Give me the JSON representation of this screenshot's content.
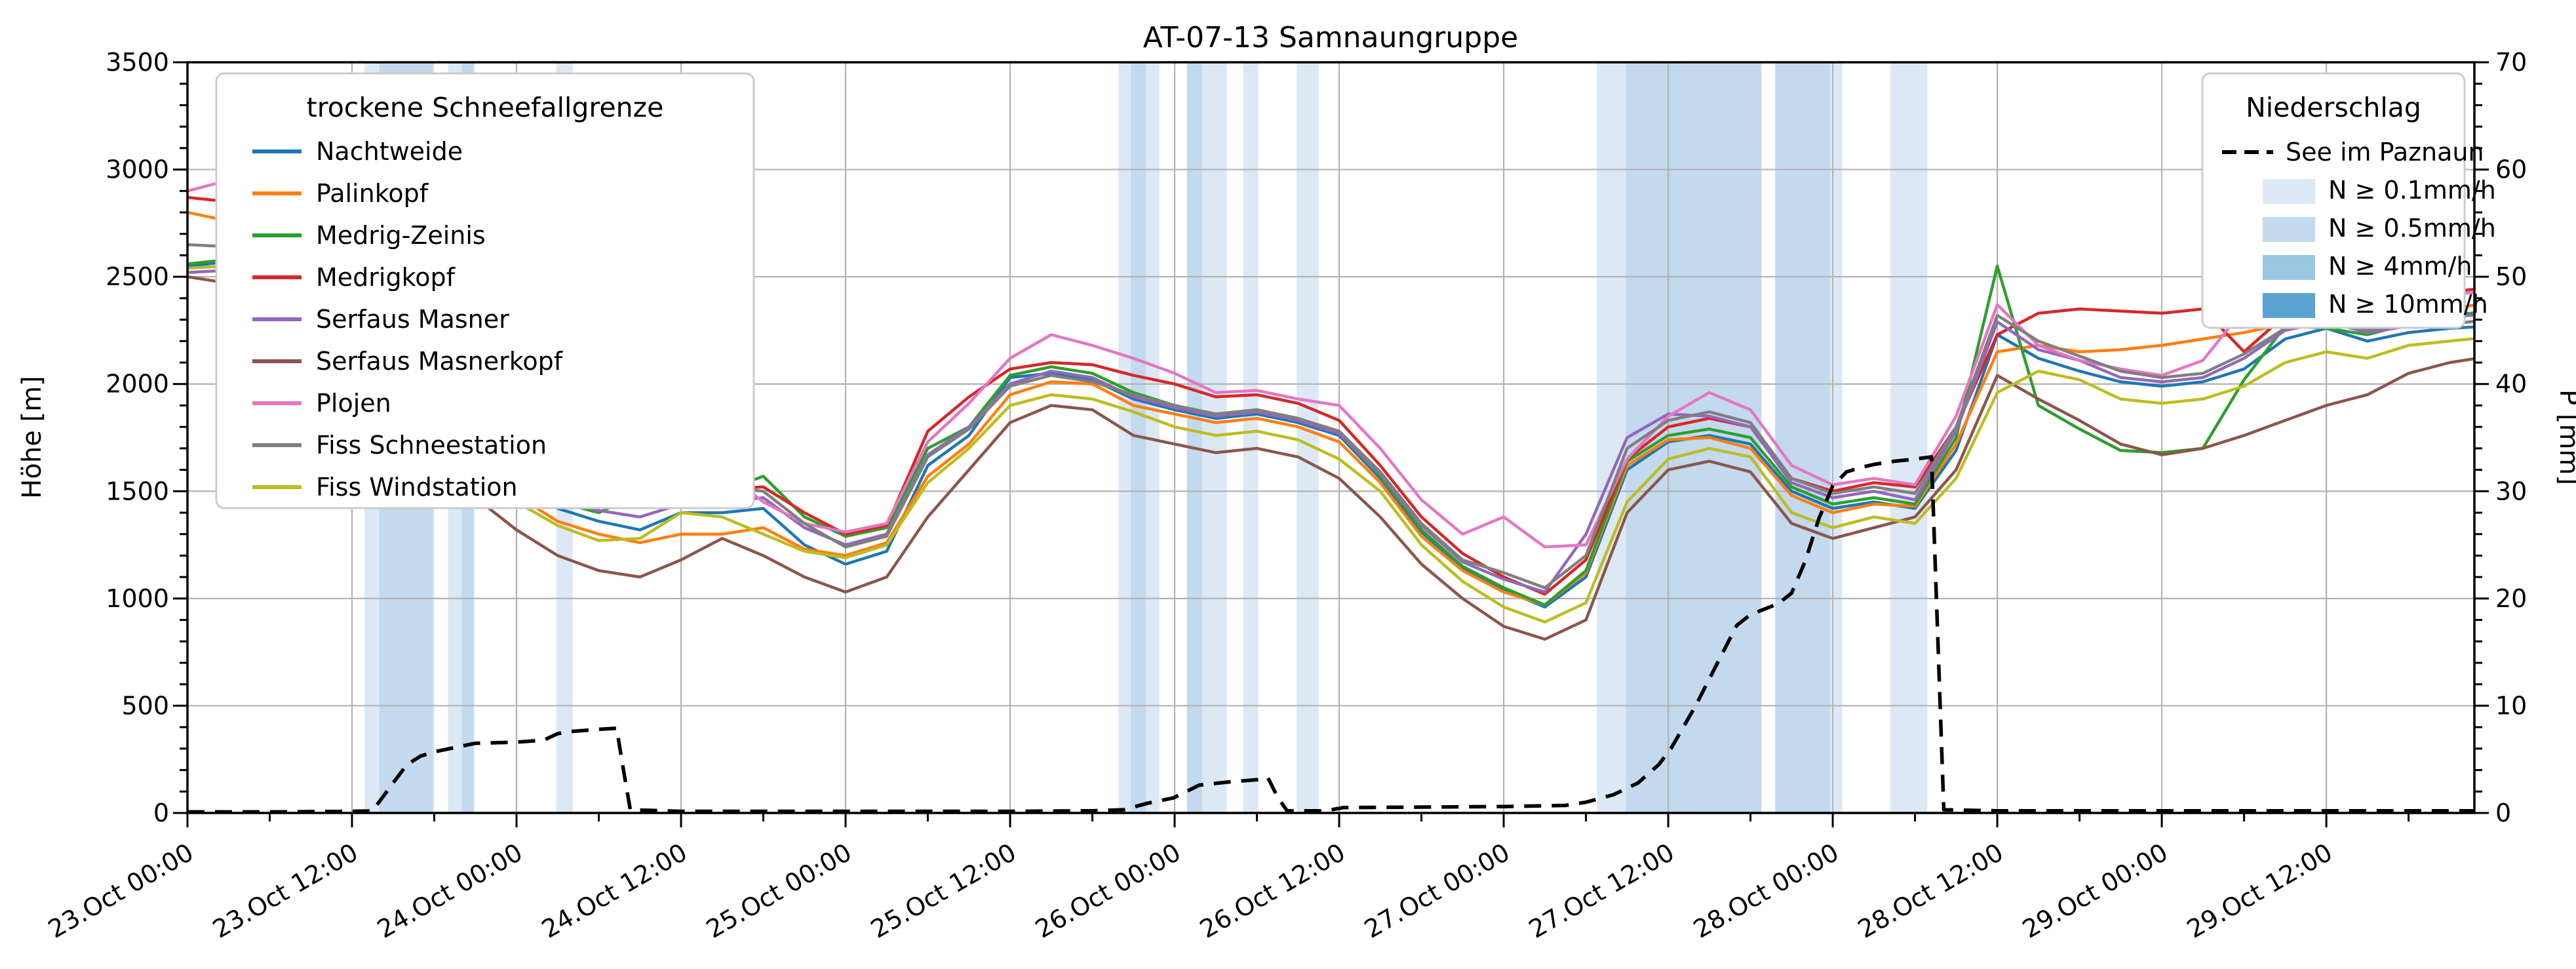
{
  "title": "AT-07-13 Samnaungruppe",
  "y_left": {
    "label": "Höhe [m]",
    "min": 0,
    "max": 3500,
    "major_ticks": [
      0,
      500,
      1000,
      1500,
      2000,
      2500,
      3000,
      3500
    ],
    "minor_step": 100
  },
  "y_right": {
    "label": "P [mm]",
    "min": 0,
    "max": 70,
    "major_ticks": [
      0,
      10,
      20,
      30,
      40,
      50,
      60,
      70
    ],
    "minor_step": 2
  },
  "x_axis": {
    "tick_labels": [
      "23.Oct 00:00",
      "23.Oct 12:00",
      "24.Oct 00:00",
      "24.Oct 12:00",
      "25.Oct 00:00",
      "25.Oct 12:00",
      "26.Oct 00:00",
      "26.Oct 12:00",
      "27.Oct 00:00",
      "27.Oct 12:00",
      "28.Oct 00:00",
      "28.Oct 12:00",
      "29.Oct 00:00",
      "29.Oct 12:00"
    ],
    "label_step_hours": 12,
    "minor_step_hours": 6,
    "end_hour": 166.8
  },
  "legend_snowline": {
    "title": "trockene Schneefallgrenze",
    "items": [
      {
        "label": "Nachtweide",
        "color": "#1f77b4"
      },
      {
        "label": "Palinkopf",
        "color": "#ff7f0e"
      },
      {
        "label": "Medrig-Zeinis",
        "color": "#2ca02c"
      },
      {
        "label": "Medrigkopf",
        "color": "#d62728"
      },
      {
        "label": "Serfaus Masner",
        "color": "#9467bd"
      },
      {
        "label": "Serfaus Masnerkopf",
        "color": "#8c564b"
      },
      {
        "label": "Plojen",
        "color": "#e377c2"
      },
      {
        "label": "Fiss Schneestation",
        "color": "#7f7f7f"
      },
      {
        "label": "Fiss Windstation",
        "color": "#bcbd22"
      }
    ]
  },
  "legend_precip": {
    "title": "Niederschlag",
    "line_item": {
      "label": "See im Paznaun",
      "color": "#000000"
    },
    "band_items": [
      {
        "label": "N ≥ 0.1mm/h",
        "color": "#dce9f5"
      },
      {
        "label": "N ≥ 0.5mm/h",
        "color": "#c3d9ee"
      },
      {
        "label": "N ≥ 4mm/h",
        "color": "#9cc7e2"
      },
      {
        "label": "N ≥ 10mm/h",
        "color": "#5ba3d0"
      }
    ]
  },
  "chart_data": {
    "type": "line",
    "x_unit": "hours since 23.Oct 00:00",
    "xlim_hours": [
      0,
      166.8
    ],
    "ylim_left": [
      0,
      3500
    ],
    "ylim_right": [
      0,
      70
    ],
    "grid": true,
    "t_step_hours": 3,
    "series": [
      {
        "name": "Nachtweide",
        "color": "#1f77b4",
        "values": [
          2550,
          2570,
          2630,
          2580,
          2550,
          2290,
          1880,
          1680,
          1540,
          1420,
          1360,
          1320,
          1400,
          1400,
          1420,
          1250,
          1160,
          1220,
          1620,
          1760,
          2030,
          2050,
          2020,
          1930,
          1880,
          1840,
          1860,
          1820,
          1760,
          1560,
          1310,
          1140,
          1040,
          960,
          1100,
          1600,
          1730,
          1760,
          1720,
          1500,
          1420,
          1450,
          1420,
          1690,
          2230,
          2120,
          2060,
          2010,
          1990,
          2010,
          2070,
          2210,
          2260,
          2200,
          2240,
          2260,
          2270
        ]
      },
      {
        "name": "Palinkopf",
        "color": "#ff7f0e",
        "values": [
          2800,
          2760,
          2700,
          2680,
          2710,
          2330,
          1840,
          1620,
          1480,
          1360,
          1300,
          1260,
          1300,
          1300,
          1330,
          1230,
          1200,
          1260,
          1570,
          1720,
          1950,
          2010,
          2000,
          1900,
          1860,
          1820,
          1840,
          1800,
          1730,
          1540,
          1290,
          1130,
          1030,
          970,
          1120,
          1620,
          1740,
          1750,
          1700,
          1480,
          1400,
          1440,
          1430,
          1720,
          2150,
          2180,
          2150,
          2160,
          2180,
          2210,
          2240,
          2280,
          2300,
          2270,
          2310,
          2350,
          2380
        ]
      },
      {
        "name": "Medrig-Zeinis",
        "color": "#2ca02c",
        "values": [
          2560,
          2580,
          2600,
          2570,
          2560,
          2310,
          1900,
          1700,
          1560,
          1450,
          1400,
          1490,
          1520,
          1500,
          1570,
          1380,
          1290,
          1330,
          1700,
          1800,
          2040,
          2080,
          2050,
          1960,
          1900,
          1860,
          1880,
          1840,
          1770,
          1570,
          1320,
          1150,
          1050,
          970,
          1130,
          1640,
          1760,
          1790,
          1750,
          1520,
          1440,
          1470,
          1440,
          1750,
          2550,
          1900,
          1790,
          1690,
          1680,
          1700,
          2020,
          2270,
          2260,
          2230,
          2280,
          2320,
          2340
        ]
      },
      {
        "name": "Medrigkopf",
        "color": "#d62728",
        "values": [
          2870,
          2850,
          2800,
          2780,
          2750,
          2420,
          1980,
          1760,
          1620,
          1500,
          1450,
          1470,
          1500,
          1510,
          1520,
          1400,
          1300,
          1340,
          1780,
          1940,
          2070,
          2100,
          2090,
          2040,
          2000,
          1940,
          1950,
          1910,
          1830,
          1620,
          1380,
          1210,
          1100,
          1020,
          1180,
          1650,
          1800,
          1840,
          1800,
          1560,
          1500,
          1540,
          1520,
          1800,
          2230,
          2330,
          2350,
          2340,
          2330,
          2350,
          2150,
          2320,
          2350,
          2300,
          2420,
          2430,
          2450
        ]
      },
      {
        "name": "Serfaus Masner",
        "color": "#9467bd",
        "values": [
          2520,
          2530,
          2560,
          2540,
          2530,
          2280,
          1870,
          1700,
          1570,
          1460,
          1410,
          1380,
          1440,
          1450,
          1470,
          1330,
          1250,
          1300,
          1670,
          1800,
          2000,
          2060,
          2030,
          1940,
          1890,
          1850,
          1870,
          1830,
          1770,
          1580,
          1340,
          1170,
          1090,
          1030,
          1300,
          1750,
          1860,
          1850,
          1800,
          1540,
          1470,
          1500,
          1460,
          1780,
          2290,
          2160,
          2110,
          2030,
          2010,
          2030,
          2120,
          2250,
          2290,
          2240,
          2270,
          2310,
          2330
        ]
      },
      {
        "name": "Serfaus Masnerkopf",
        "color": "#8c564b",
        "values": [
          2500,
          2470,
          2440,
          2420,
          2450,
          2180,
          1700,
          1470,
          1320,
          1200,
          1130,
          1100,
          1180,
          1280,
          1200,
          1100,
          1030,
          1100,
          1380,
          1600,
          1820,
          1900,
          1880,
          1760,
          1720,
          1680,
          1700,
          1660,
          1560,
          1380,
          1160,
          1000,
          870,
          810,
          900,
          1400,
          1600,
          1640,
          1590,
          1350,
          1280,
          1330,
          1380,
          1600,
          2040,
          1930,
          1830,
          1720,
          1670,
          1700,
          1760,
          1830,
          1900,
          1950,
          2050,
          2100,
          2130
        ]
      },
      {
        "name": "Plojen",
        "color": "#e377c2",
        "values": [
          2900,
          2950,
          2880,
          2930,
          2870,
          2500,
          2060,
          1820,
          1700,
          1620,
          1560,
          1780,
          1790,
          1600,
          1450,
          1350,
          1310,
          1350,
          1730,
          1910,
          2120,
          2230,
          2180,
          2120,
          2050,
          1960,
          1970,
          1930,
          1900,
          1700,
          1460,
          1300,
          1380,
          1240,
          1250,
          1650,
          1850,
          1960,
          1880,
          1620,
          1530,
          1560,
          1530,
          1850,
          2370,
          2180,
          2110,
          2070,
          2040,
          2110,
          2350,
          2480,
          2400,
          2300,
          2430,
          2420,
          2430
        ]
      },
      {
        "name": "Fiss Schneestation",
        "color": "#7f7f7f",
        "values": [
          2650,
          2640,
          2630,
          2620,
          2610,
          2350,
          1920,
          1720,
          1590,
          1480,
          1430,
          1500,
          1520,
          1520,
          1500,
          1350,
          1240,
          1290,
          1660,
          1790,
          1990,
          2040,
          2010,
          1950,
          1900,
          1860,
          1880,
          1840,
          1780,
          1590,
          1350,
          1180,
          1120,
          1050,
          1200,
          1700,
          1830,
          1870,
          1820,
          1560,
          1490,
          1520,
          1490,
          1800,
          2320,
          2200,
          2130,
          2060,
          2030,
          2050,
          2140,
          2260,
          2300,
          2250,
          2280,
          2280,
          2300
        ]
      },
      {
        "name": "Fiss Windstation",
        "color": "#bcbd22",
        "values": [
          2540,
          2550,
          2530,
          2540,
          2520,
          2260,
          1810,
          1590,
          1450,
          1340,
          1270,
          1280,
          1400,
          1380,
          1300,
          1220,
          1190,
          1250,
          1540,
          1700,
          1900,
          1950,
          1930,
          1870,
          1800,
          1760,
          1780,
          1740,
          1650,
          1500,
          1250,
          1080,
          960,
          890,
          980,
          1450,
          1650,
          1700,
          1660,
          1400,
          1330,
          1380,
          1350,
          1560,
          1960,
          2060,
          2020,
          1930,
          1910,
          1930,
          1990,
          2100,
          2150,
          2120,
          2180,
          2200,
          2220
        ]
      }
    ],
    "precip_line": {
      "name": "See im Paznaun",
      "points": [
        [
          0,
          0.1
        ],
        [
          6,
          0.1
        ],
        [
          12,
          0.15
        ],
        [
          13.5,
          0.2
        ],
        [
          15,
          2.8
        ],
        [
          16,
          4.5
        ],
        [
          17,
          5.3
        ],
        [
          18,
          5.7
        ],
        [
          19.5,
          6.1
        ],
        [
          21,
          6.5
        ],
        [
          24,
          6.6
        ],
        [
          26,
          6.8
        ],
        [
          27,
          7.4
        ],
        [
          28,
          7.6
        ],
        [
          30,
          7.8
        ],
        [
          31.3,
          7.9
        ],
        [
          31.8,
          4.0
        ],
        [
          32.3,
          0.3
        ],
        [
          36,
          0.15
        ],
        [
          60,
          0.15
        ],
        [
          66,
          0.2
        ],
        [
          68.3,
          0.3
        ],
        [
          70,
          0.9
        ],
        [
          71.9,
          1.4
        ],
        [
          73.8,
          2.6
        ],
        [
          76,
          2.9
        ],
        [
          78,
          3.1
        ],
        [
          78.8,
          3.3
        ],
        [
          79.5,
          1.5
        ],
        [
          80.2,
          0.2
        ],
        [
          83,
          0.2
        ],
        [
          84.3,
          0.5
        ],
        [
          96,
          0.6
        ],
        [
          100.5,
          0.7
        ],
        [
          102,
          1.0
        ],
        [
          104,
          1.7
        ],
        [
          105.8,
          2.8
        ],
        [
          107.3,
          4.5
        ],
        [
          108.2,
          6.0
        ],
        [
          110,
          10
        ],
        [
          111,
          12.5
        ],
        [
          112,
          15
        ],
        [
          113,
          17.5
        ],
        [
          114,
          18.5
        ],
        [
          115,
          19
        ],
        [
          116,
          19.5
        ],
        [
          117,
          20.5
        ],
        [
          118,
          23.5
        ],
        [
          119,
          27.5
        ],
        [
          120,
          30.5
        ],
        [
          121,
          31.8
        ],
        [
          122,
          32.2
        ],
        [
          123,
          32.5
        ],
        [
          124.5,
          32.8
        ],
        [
          126,
          33
        ],
        [
          127.2,
          33.2
        ],
        [
          127.7,
          15
        ],
        [
          128.1,
          0.3
        ],
        [
          132,
          0.2
        ],
        [
          144,
          0.2
        ],
        [
          156,
          0.2
        ],
        [
          168,
          0.2
        ]
      ]
    },
    "precip_bands": [
      {
        "from_h": 12.9,
        "to_h": 18.0,
        "level": 1
      },
      {
        "from_h": 14.0,
        "to_h": 17.9,
        "level": 2
      },
      {
        "from_h": 19.0,
        "to_h": 20.9,
        "level": 1
      },
      {
        "from_h": 20.0,
        "to_h": 20.9,
        "level": 2
      },
      {
        "from_h": 26.9,
        "to_h": 28.1,
        "level": 1
      },
      {
        "from_h": 67.9,
        "to_h": 70.9,
        "level": 1
      },
      {
        "from_h": 68.8,
        "to_h": 69.9,
        "level": 2
      },
      {
        "from_h": 72.9,
        "to_h": 75.8,
        "level": 1
      },
      {
        "from_h": 72.9,
        "to_h": 74.0,
        "level": 2
      },
      {
        "from_h": 77.0,
        "to_h": 78.1,
        "level": 1
      },
      {
        "from_h": 80.9,
        "to_h": 82.5,
        "level": 1
      },
      {
        "from_h": 102.8,
        "to_h": 104.9,
        "level": 1
      },
      {
        "from_h": 104.9,
        "to_h": 114.8,
        "level": 2
      },
      {
        "from_h": 115.8,
        "to_h": 119.8,
        "level": 2
      },
      {
        "from_h": 119.8,
        "to_h": 120.7,
        "level": 1
      },
      {
        "from_h": 124.2,
        "to_h": 126.9,
        "level": 1
      }
    ],
    "band_level_colors": {
      "1": "#dce9f5",
      "2": "#c3d9ee",
      "3": "#9cc7e2",
      "4": "#5ba3d0"
    },
    "grid_color": "#b3b3b3"
  }
}
